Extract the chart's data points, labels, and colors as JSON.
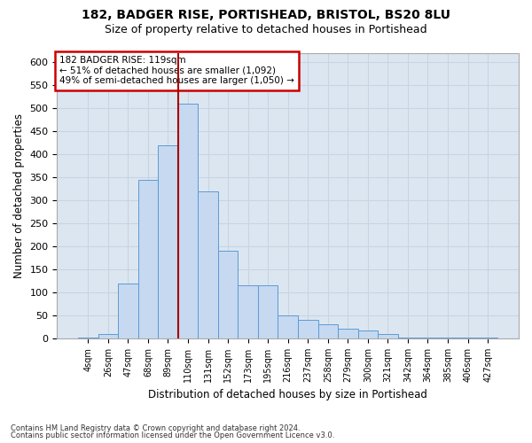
{
  "title1": "182, BADGER RISE, PORTISHEAD, BRISTOL, BS20 8LU",
  "title2": "Size of property relative to detached houses in Portishead",
  "xlabel": "Distribution of detached houses by size in Portishead",
  "ylabel": "Number of detached properties",
  "footer1": "Contains HM Land Registry data © Crown copyright and database right 2024.",
  "footer2": "Contains public sector information licensed under the Open Government Licence v3.0.",
  "annotation_line1": "182 BADGER RISE: 119sqm",
  "annotation_line2": "← 51% of detached houses are smaller (1,092)",
  "annotation_line3": "49% of semi-detached houses are larger (1,050) →",
  "bar_color": "#c6d9f0",
  "bar_edge_color": "#5b9bd5",
  "grid_color": "#c8d4e3",
  "background_color": "#dce6f1",
  "red_line_color": "#aa0000",
  "annotation_box_color": "#cc0000",
  "categories": [
    "4sqm",
    "26sqm",
    "47sqm",
    "68sqm",
    "89sqm",
    "110sqm",
    "131sqm",
    "152sqm",
    "173sqm",
    "195sqm",
    "216sqm",
    "237sqm",
    "258sqm",
    "279sqm",
    "300sqm",
    "321sqm",
    "342sqm",
    "364sqm",
    "385sqm",
    "406sqm",
    "427sqm"
  ],
  "bar_heights": [
    3,
    10,
    120,
    345,
    420,
    510,
    320,
    190,
    115,
    115,
    50,
    40,
    30,
    22,
    18,
    10,
    3,
    3,
    3,
    3,
    3
  ],
  "ylim": [
    0,
    620
  ],
  "yticks": [
    0,
    50,
    100,
    150,
    200,
    250,
    300,
    350,
    400,
    450,
    500,
    550,
    600
  ],
  "red_line_x": 4.5,
  "figsize": [
    6.0,
    5.0
  ],
  "dpi": 100
}
